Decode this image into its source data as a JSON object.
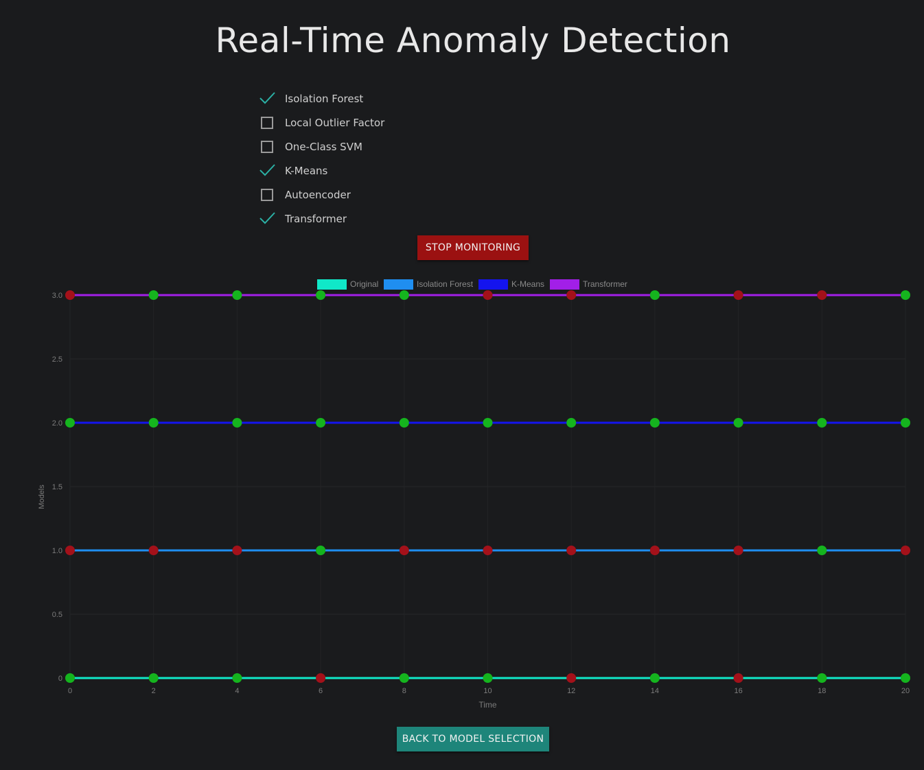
{
  "page": {
    "title": "Real-Time Anomaly Detection"
  },
  "models": [
    {
      "label": "Isolation Forest",
      "checked": true
    },
    {
      "label": "Local Outlier Factor",
      "checked": false
    },
    {
      "label": "One-Class SVM",
      "checked": false
    },
    {
      "label": "K-Means",
      "checked": true
    },
    {
      "label": "Autoencoder",
      "checked": false
    },
    {
      "label": "Transformer",
      "checked": true
    }
  ],
  "buttons": {
    "stop_label": "STOP MONITORING",
    "back_label": "BACK TO MODEL SELECTION"
  },
  "colors": {
    "background": "#1a1b1d",
    "check": "#2bb1a5",
    "stop_button": "#9b1111",
    "back_button": "#1e857a",
    "normal_point": "#15b41e",
    "anomaly_point": "#a3111a"
  },
  "chart_data": {
    "type": "line",
    "xlabel": "Time",
    "ylabel": "Models",
    "xlim": [
      0,
      20
    ],
    "ylim": [
      0,
      3
    ],
    "x_ticks": [
      0,
      2,
      4,
      6,
      8,
      10,
      12,
      14,
      16,
      18,
      20
    ],
    "y_ticks": [
      "0",
      "0.5",
      "1.0",
      "1.5",
      "2.0",
      "2.5",
      "3.0"
    ],
    "grid": true,
    "legend_position": "top-center",
    "x": [
      0,
      2,
      4,
      6,
      8,
      10,
      12,
      14,
      16,
      18,
      20
    ],
    "series": [
      {
        "name": "Original",
        "color": "#10e8c8",
        "values": [
          0,
          0,
          0,
          0,
          0,
          0,
          0,
          0,
          0,
          0,
          0
        ],
        "anomaly": [
          false,
          false,
          false,
          true,
          false,
          false,
          true,
          false,
          true,
          false,
          false
        ]
      },
      {
        "name": "Isolation Forest",
        "color": "#1f8ef0",
        "values": [
          1,
          1,
          1,
          1,
          1,
          1,
          1,
          1,
          1,
          1,
          1
        ],
        "anomaly": [
          true,
          true,
          true,
          false,
          true,
          true,
          true,
          true,
          true,
          false,
          true
        ]
      },
      {
        "name": "K-Means",
        "color": "#1414ee",
        "values": [
          2,
          2,
          2,
          2,
          2,
          2,
          2,
          2,
          2,
          2,
          2
        ],
        "anomaly": [
          false,
          false,
          false,
          false,
          false,
          false,
          false,
          false,
          false,
          false,
          false
        ]
      },
      {
        "name": "Transformer",
        "color": "#a21fe8",
        "values": [
          3,
          3,
          3,
          3,
          3,
          3,
          3,
          3,
          3,
          3,
          3
        ],
        "anomaly": [
          true,
          false,
          false,
          false,
          false,
          true,
          true,
          false,
          true,
          true,
          false
        ]
      }
    ]
  }
}
